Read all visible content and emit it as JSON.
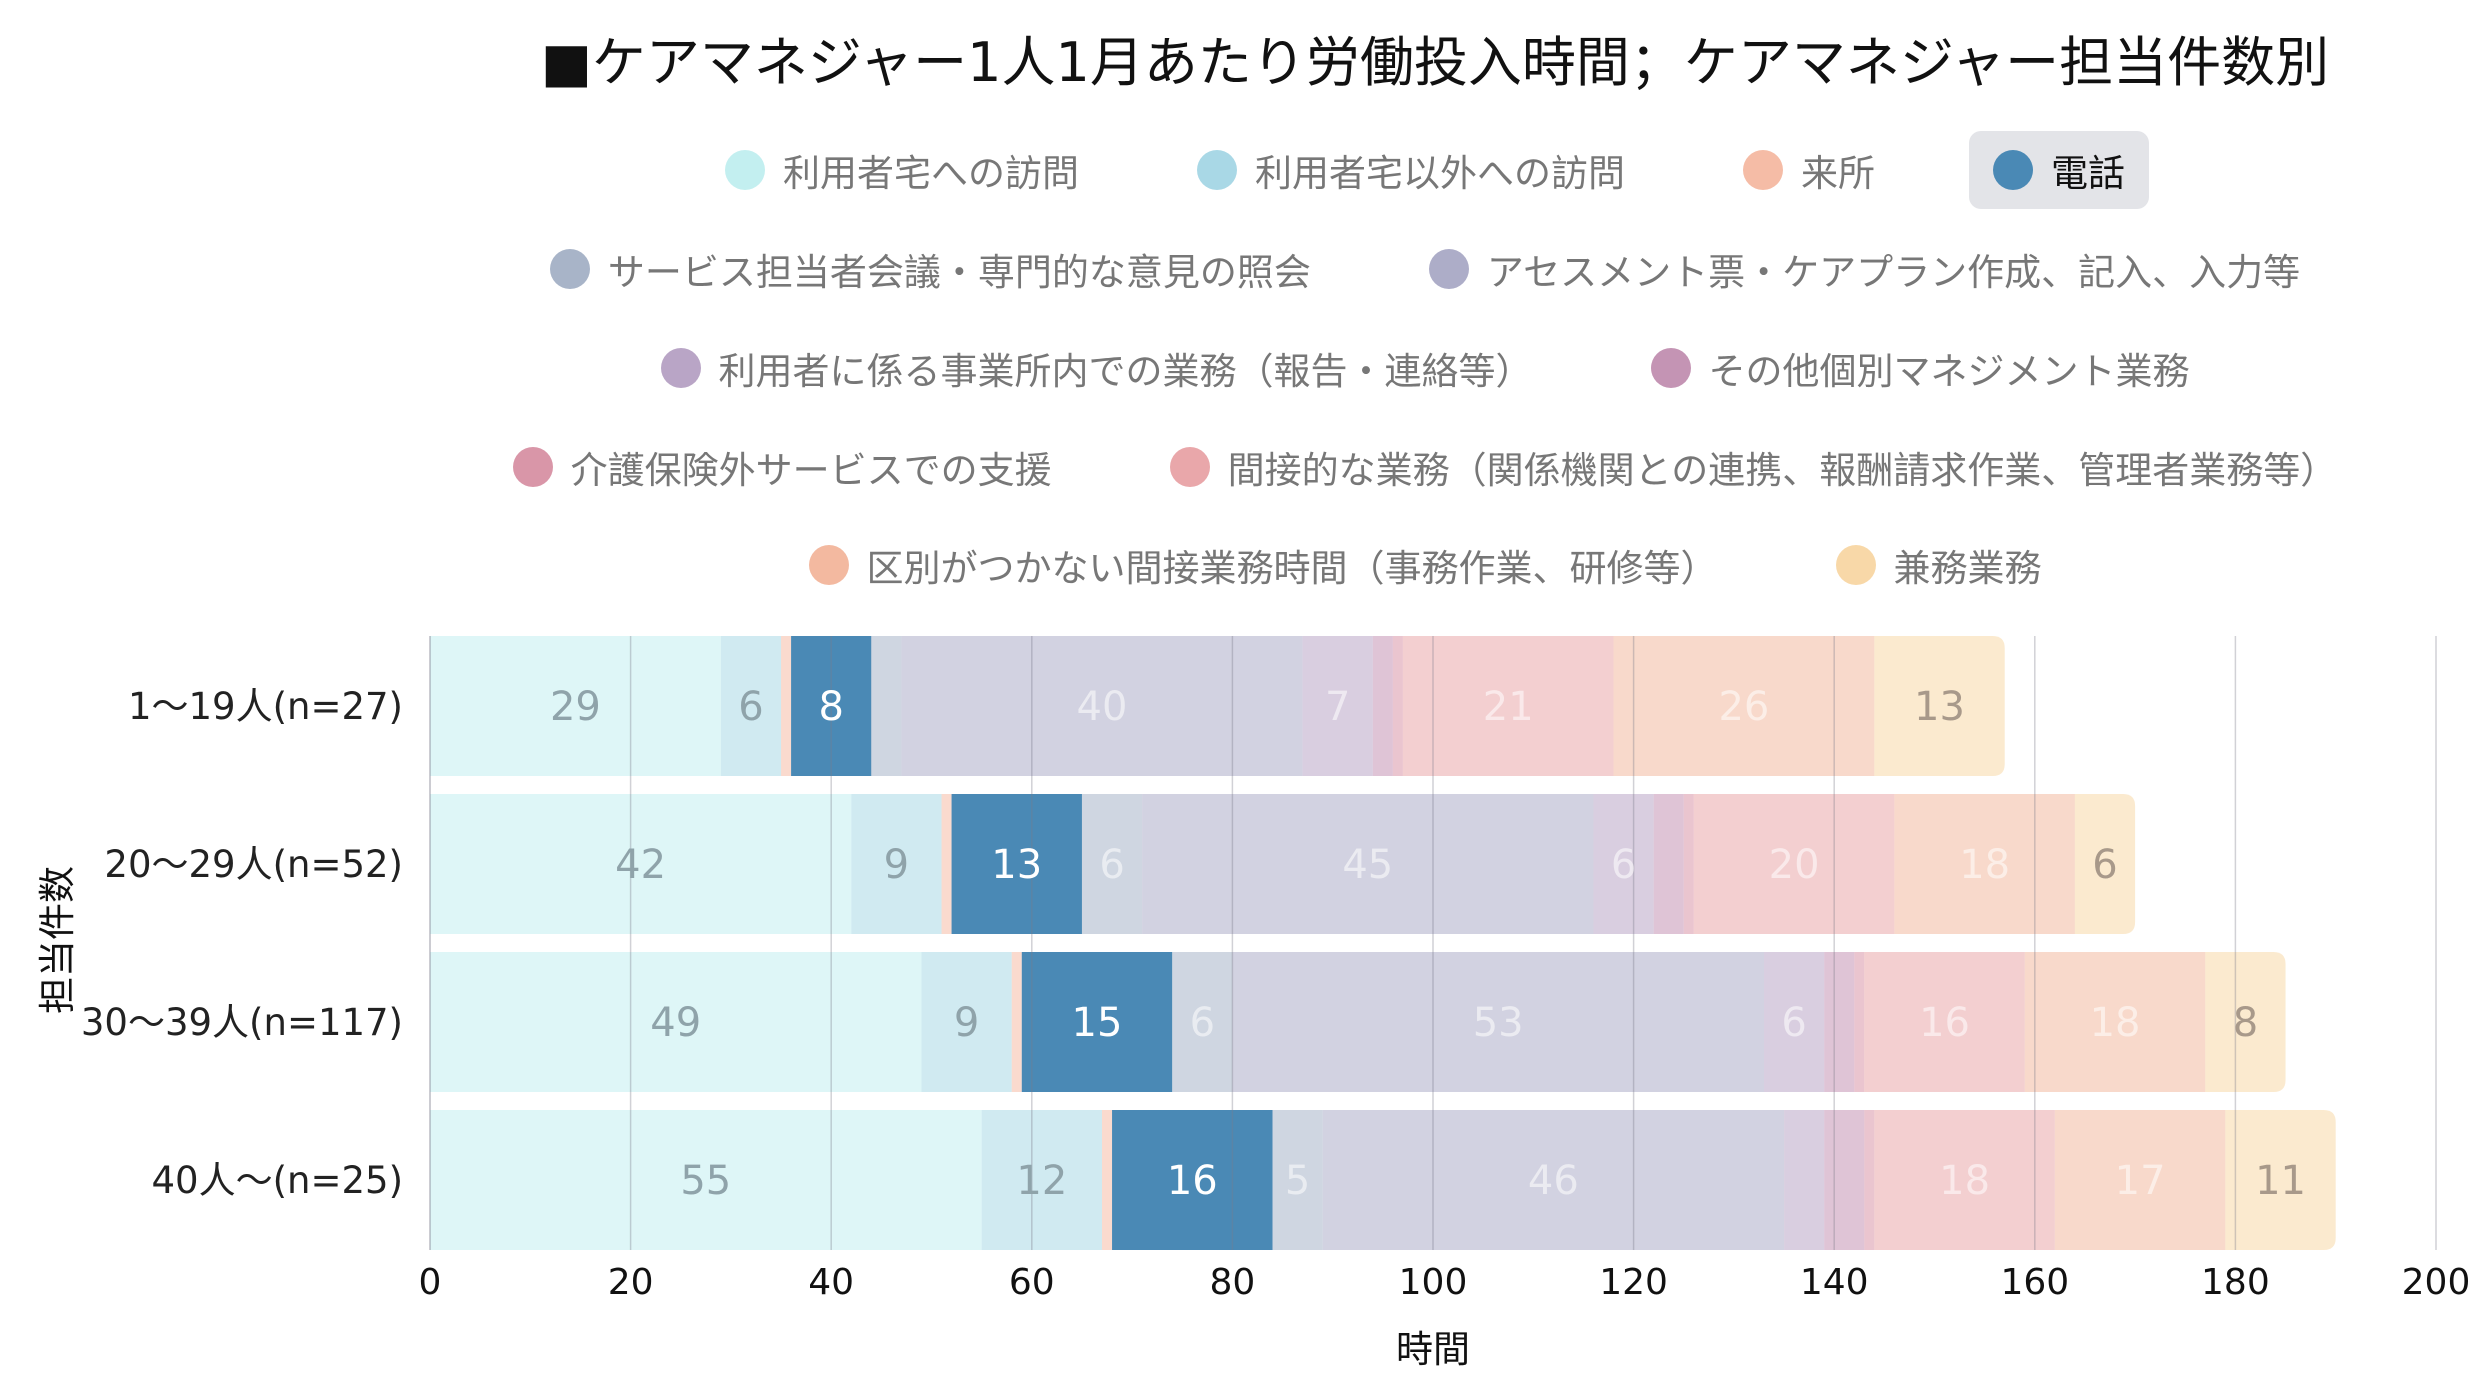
{
  "chart_data": {
    "type": "bar",
    "orientation": "horizontal",
    "stacked": true,
    "title": "■ケアマネジャー1人1月あたり労働投入時間；ケアマネジャー担当件数別",
    "xlabel": "時間",
    "ylabel": "担当件数",
    "xlim": [
      0,
      200
    ],
    "xticks": [
      "0",
      "20",
      "40",
      "60",
      "80",
      "100",
      "120",
      "140",
      "160",
      "180",
      "200"
    ],
    "grid": true,
    "legend_position": "top",
    "highlighted_series": "電話",
    "categories": [
      "1〜19人(n=27)",
      "20〜29人(n=52)",
      "30〜39人(n=117)",
      "40人〜(n=25)"
    ],
    "series": [
      {
        "name": "利用者宅への訪問",
        "color": "#c3eff0",
        "values": [
          29,
          42,
          49,
          55
        ]
      },
      {
        "name": "利用者宅以外への訪問",
        "color": "#a9d8e6",
        "values": [
          6,
          9,
          9,
          12
        ]
      },
      {
        "name": "来所",
        "color": "#f5bca6",
        "values": [
          1,
          1,
          1,
          1
        ]
      },
      {
        "name": "電話",
        "color": "#4a89b5",
        "values": [
          8,
          13,
          15,
          16
        ]
      },
      {
        "name": "サービス担当者会議・専門的な意見の照会",
        "color": "#a8b4c8",
        "values": [
          3,
          6,
          6,
          5
        ]
      },
      {
        "name": "アセスメント票・ケアプラン作成、記入、入力等",
        "color": "#adadc8",
        "values": [
          40,
          45,
          53,
          46
        ]
      },
      {
        "name": "利用者に係る事業所内での業務（報告・連絡等）",
        "color": "#b9a5c6",
        "values": [
          7,
          6,
          6,
          4
        ]
      },
      {
        "name": "その他個別マネジメント業務",
        "color": "#c494b4",
        "values": [
          2,
          3,
          3,
          4
        ]
      },
      {
        "name": "介護保険外サービスでの支援",
        "color": "#d996a8",
        "values": [
          1,
          1,
          1,
          1
        ]
      },
      {
        "name": "間接的な業務（関係機関との連携、報酬請求作業、管理者業務等）",
        "color": "#e9a7aa",
        "values": [
          21,
          20,
          16,
          18
        ]
      },
      {
        "name": "区別がつかない間接業務時間（事務作業、研修等）",
        "color": "#f3b9a0",
        "values": [
          26,
          18,
          18,
          17
        ]
      },
      {
        "name": "兼務業務",
        "color": "#f8d8a8",
        "values": [
          13,
          6,
          8,
          11
        ]
      }
    ]
  }
}
